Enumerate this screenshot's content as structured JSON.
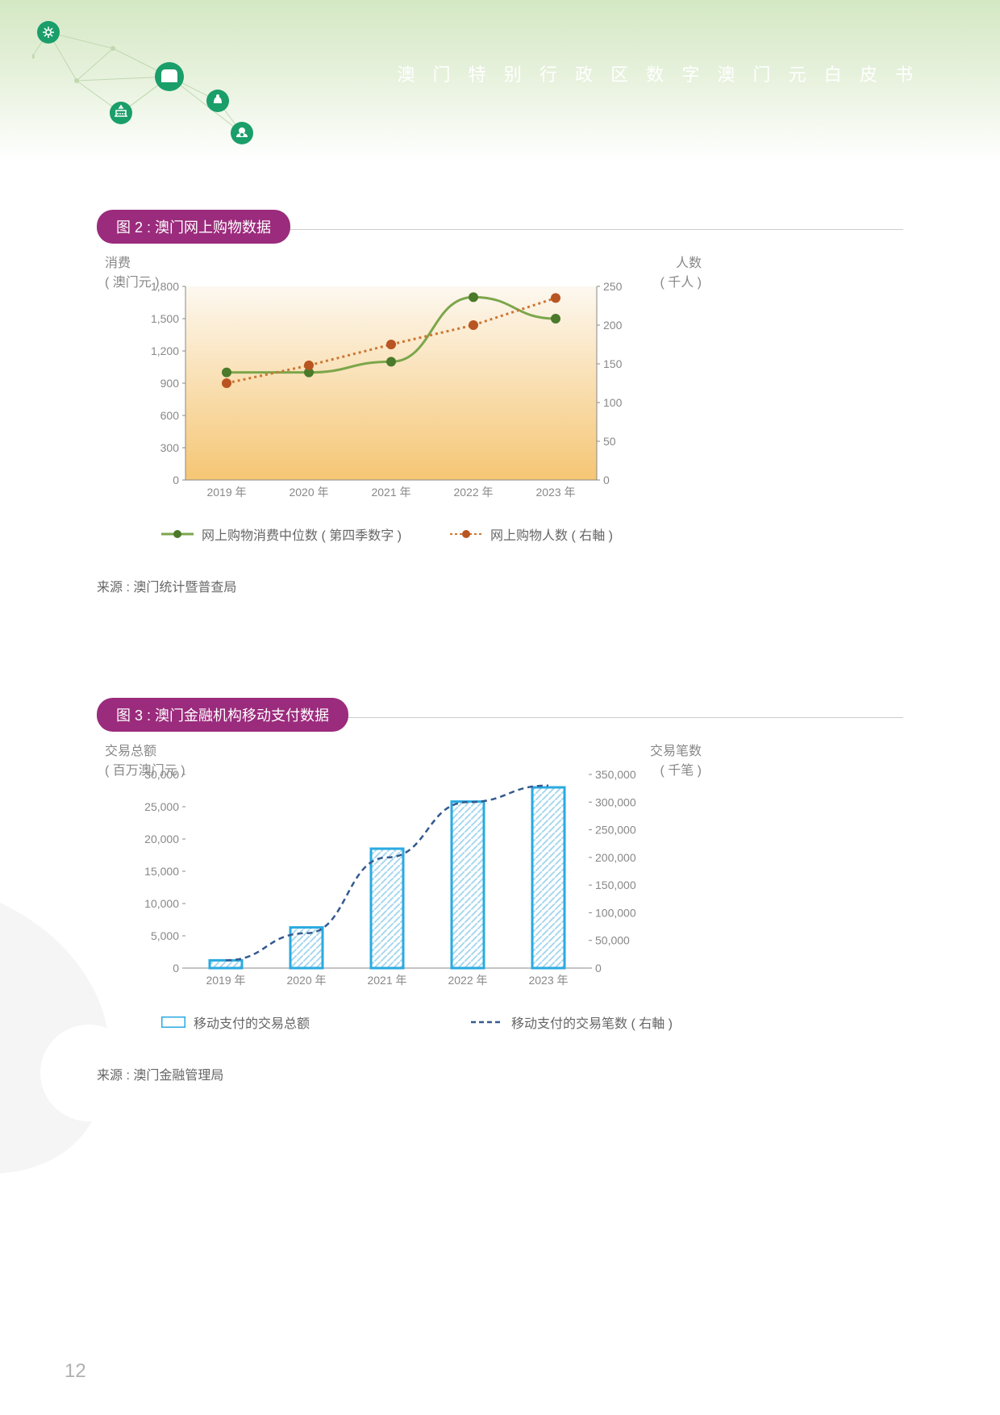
{
  "header": {
    "title": "澳 门 特 别 行 政 区 数 字 澳 门 元 白 皮 书"
  },
  "decoration": {
    "icon_color": "#1a9e6a",
    "line_color": "#c0d8b0"
  },
  "chart2": {
    "title": "图 2 : 澳门网上购物数据",
    "pill_bg": "#9b2b7c",
    "left_axis_label_line1": "消费",
    "left_axis_label_line2": "( 澳门元 )",
    "right_axis_label_line1": "人数",
    "right_axis_label_line2": "( 千人 )",
    "background_gradient_top": "#fdf8f0",
    "background_gradient_bottom": "#f5c674",
    "categories": [
      "2019 年",
      "2020 年",
      "2021 年",
      "2022 年",
      "2023 年"
    ],
    "left_ticks": [
      0,
      300,
      600,
      900,
      1200,
      1500,
      1800
    ],
    "right_ticks": [
      0,
      50,
      100,
      150,
      200,
      250
    ],
    "series1": {
      "label": "网上购物消费中位数 ( 第四季数字 )",
      "color": "#7ca64b",
      "marker_fill": "#4a7a2a",
      "values": [
        1000,
        1000,
        1100,
        1700,
        1500
      ]
    },
    "series2": {
      "label": "网上购物人数 ( 右軸 )",
      "color": "#cc7733",
      "marker_fill": "#b85522",
      "values": [
        125,
        148,
        175,
        200,
        235
      ]
    },
    "source": "来源 : 澳门统计暨普查局"
  },
  "chart3": {
    "title": "图 3 : 澳门金融机构移动支付数据",
    "pill_bg": "#9b2b7c",
    "left_axis_label_line1": "交易总额",
    "left_axis_label_line2": "( 百万澳门元 )",
    "right_axis_label_line1": "交易笔数",
    "right_axis_label_line2": "( 千笔 )",
    "categories": [
      "2019 年",
      "2020 年",
      "2021 年",
      "2022 年",
      "2023 年"
    ],
    "left_ticks": [
      0,
      5000,
      10000,
      15000,
      20000,
      25000,
      30000
    ],
    "right_ticks": [
      0,
      50000,
      100000,
      150000,
      200000,
      250000,
      300000,
      350000
    ],
    "bars": {
      "label": "移动支付的交易总额",
      "border_color": "#2aaae0",
      "hatch_color": "#a8d8ee",
      "values": [
        1200,
        6300,
        18500,
        25800,
        28000
      ]
    },
    "line": {
      "label": "移动支付的交易笔数 ( 右軸 )",
      "color": "#335a8f",
      "values": [
        14000,
        63000,
        200000,
        300000,
        330000
      ]
    },
    "source": "来源 : 澳门金融管理局"
  },
  "page_number": "12"
}
